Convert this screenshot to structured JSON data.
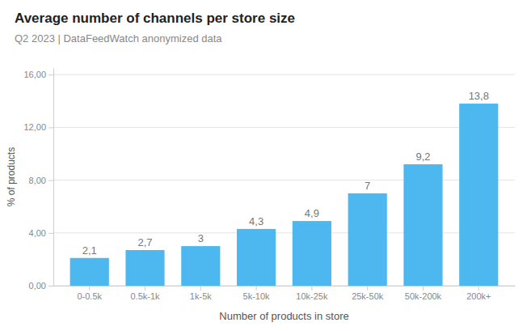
{
  "chart_data": {
    "type": "bar",
    "title": "Average number of channels per store size",
    "subtitle": "Q2 2023 | DataFeedWatch anonymized data",
    "xlabel": "Number of products in store",
    "ylabel": "% of products",
    "categories": [
      "0-0.5k",
      "0.5k-1k",
      "1k-5k",
      "5k-10k",
      "10k-25k",
      "25k-50k",
      "50k-200k",
      "200k+"
    ],
    "values": [
      2.1,
      2.7,
      3.0,
      4.3,
      4.9,
      7.0,
      9.2,
      13.8
    ],
    "value_labels": [
      "2,1",
      "2,7",
      "3",
      "4,3",
      "4,9",
      "7",
      "9,2",
      "13,8"
    ],
    "color": "#4db8f0",
    "ylim": [
      0,
      16.5
    ],
    "yticks": [
      {
        "value": 0.0,
        "label": "0,00"
      },
      {
        "value": 4.0,
        "label": "4,00"
      },
      {
        "value": 8.0,
        "label": "8,00"
      },
      {
        "value": 12.0,
        "label": "12,00"
      },
      {
        "value": 16.0,
        "label": "16,00"
      }
    ],
    "grid": true,
    "data_labels": true
  }
}
